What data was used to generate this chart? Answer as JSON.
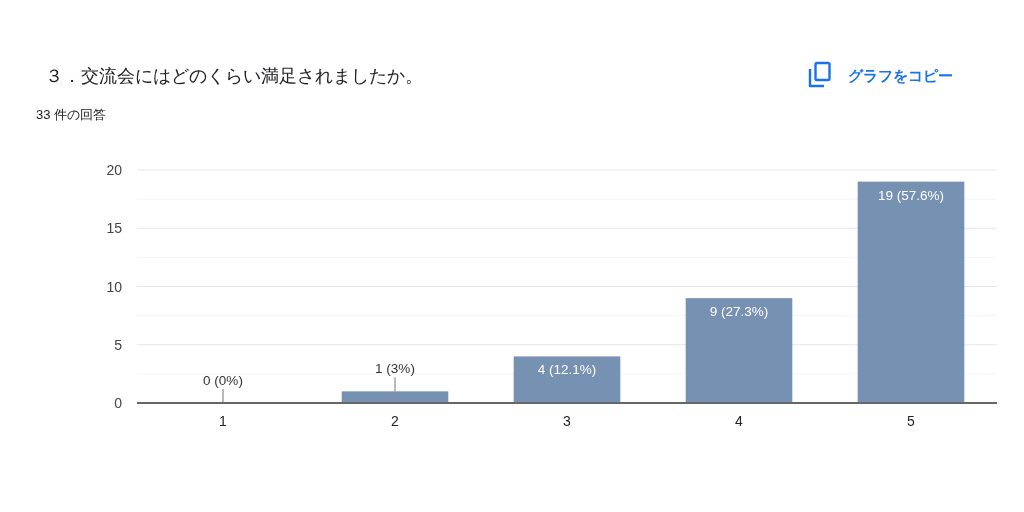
{
  "chart_data": {
    "type": "bar",
    "title": "３．交流会にはどのくらい満足されましたか。",
    "subtitle": "33 件の回答",
    "annotations": [
      "グラフをコピー"
    ],
    "categories": [
      "1",
      "2",
      "3",
      "4",
      "5"
    ],
    "values": [
      0,
      1,
      4,
      9,
      19
    ],
    "color": "#7791b3",
    "value_labels": [
      "0 (0%)",
      "1 (3%)",
      "4 (12.1%)",
      "9 (27.3%)",
      "19 (57.6%)"
    ],
    "ylim": [
      0,
      20
    ],
    "yticks": [
      0,
      {
        "value": 2.5,
        "label": null
      },
      5,
      {
        "value": 7.5,
        "label": null
      },
      10,
      {
        "value": 12.5,
        "label": null
      },
      15,
      {
        "value": 17.5,
        "label": null
      },
      20
    ],
    "grid": "y"
  }
}
